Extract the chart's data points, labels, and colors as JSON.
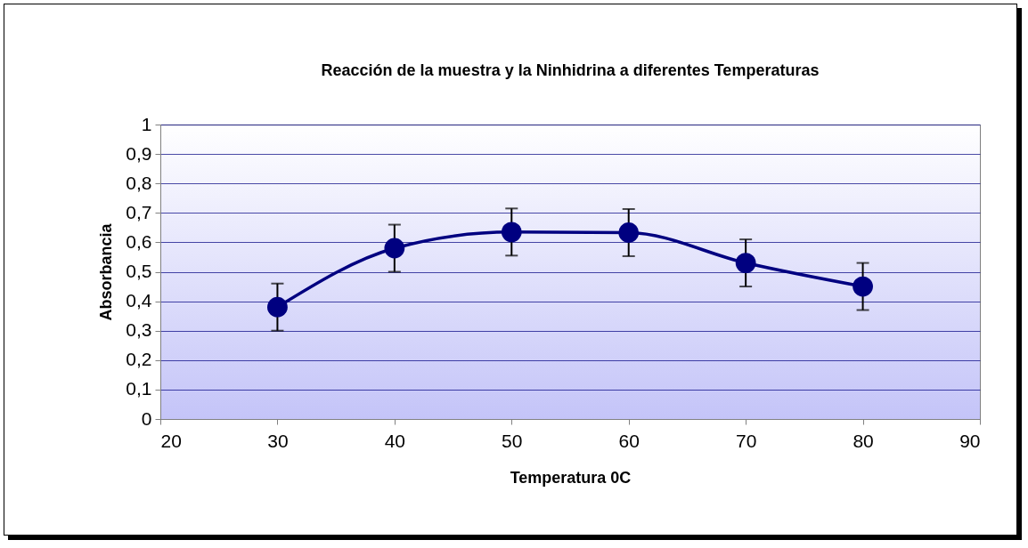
{
  "chart_data": {
    "type": "line",
    "title": "Reacción de la muestra y la Ninhidrina a diferentes Temperaturas",
    "xlabel": "Temperatura 0C",
    "ylabel": "Absorbancia",
    "x": [
      30,
      40,
      50,
      60,
      70,
      80
    ],
    "series": [
      {
        "color": "#000080",
        "values": [
          0.38,
          0.58,
          0.635,
          0.633,
          0.53,
          0.45
        ],
        "errors": [
          0.08,
          0.08,
          0.08,
          0.08,
          0.08,
          0.08
        ]
      }
    ],
    "xlim": [
      20,
      90
    ],
    "xticks": [
      20,
      30,
      40,
      50,
      60,
      70,
      80,
      90
    ],
    "ylim": [
      0,
      1
    ],
    "yticks": [
      0,
      {
        "value": 0.1,
        "label": "0,1"
      },
      {
        "value": 0.2,
        "label": "0,2"
      },
      {
        "value": 0.3,
        "label": "0,3"
      },
      {
        "value": 0.4,
        "label": "0,4"
      },
      {
        "value": 0.5,
        "label": "0,5"
      },
      {
        "value": 0.6,
        "label": "0,6"
      },
      {
        "value": 0.7,
        "label": "0,7"
      },
      {
        "value": 0.8,
        "label": "0,8"
      },
      {
        "value": 0.9,
        "label": "0,9"
      },
      1
    ],
    "grid": "y",
    "marker": "circle",
    "line_style": "solid"
  }
}
